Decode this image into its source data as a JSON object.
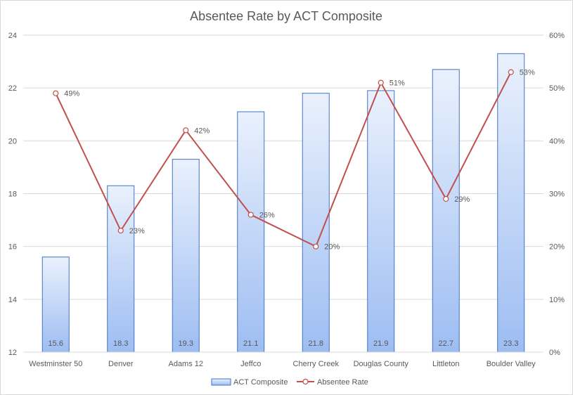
{
  "chart_data": {
    "type": "bar+line",
    "title": "Absentee Rate by ACT Composite",
    "categories": [
      "Westminster 50",
      "Denver",
      "Adams 12",
      "Jeffco",
      "Cherry Creek",
      "Douglas County",
      "Littleton",
      "Boulder Valley"
    ],
    "series": [
      {
        "name": "ACT Composite",
        "type": "bar",
        "axis": "left",
        "values": [
          15.6,
          18.3,
          19.3,
          21.1,
          21.8,
          21.9,
          22.7,
          23.3
        ],
        "labels": [
          "15.6",
          "18.3",
          "19.3",
          "21.1",
          "21.8",
          "21.9",
          "22.7",
          "23.3"
        ],
        "color": "#4472c4"
      },
      {
        "name": "Absentee Rate",
        "type": "line",
        "axis": "right",
        "values": [
          0.49,
          0.23,
          0.42,
          0.26,
          0.2,
          0.51,
          0.29,
          0.53
        ],
        "labels": [
          "49%",
          "23%",
          "42%",
          "26%",
          "20%",
          "51%",
          "29%",
          "53%"
        ],
        "color": "#c0504d"
      }
    ],
    "y_left": {
      "min": 12,
      "max": 24,
      "ticks": [
        "12",
        "14",
        "16",
        "18",
        "20",
        "22",
        "24"
      ]
    },
    "y_right": {
      "min": 0,
      "max": 0.6,
      "ticks": [
        "0%",
        "10%",
        "20%",
        "30%",
        "40%",
        "50%",
        "60%"
      ]
    },
    "grid": true,
    "legend": "bottom"
  }
}
